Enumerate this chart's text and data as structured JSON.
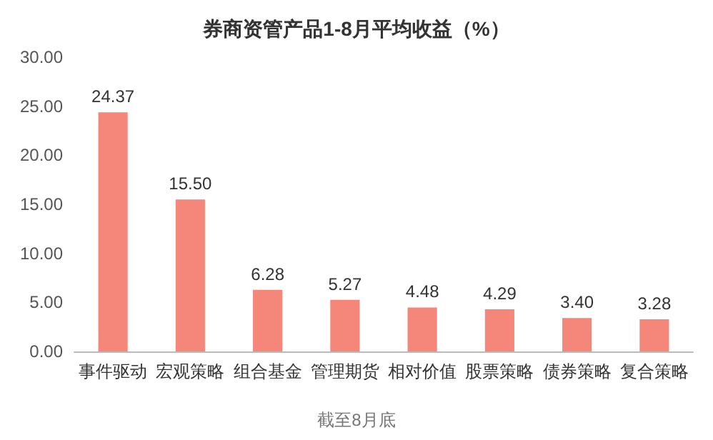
{
  "chart_data": {
    "type": "bar",
    "title": "券商资管产品1-8月平均收益（%）",
    "categories": [
      "事件驱动",
      "宏观策略",
      "组合基金",
      "管理期货",
      "相对价值",
      "股票策略",
      "债券策略",
      "复合策略"
    ],
    "values": [
      24.37,
      15.5,
      6.28,
      5.27,
      4.48,
      4.29,
      3.4,
      3.28
    ],
    "value_labels": [
      "24.37",
      "15.50",
      "6.28",
      "5.27",
      "4.48",
      "4.29",
      "3.40",
      "3.28"
    ],
    "color": "#f4877a",
    "ylim": [
      0,
      30
    ],
    "yticks": [
      {
        "value": 0,
        "label": "0.00"
      },
      {
        "value": 5,
        "label": "5.00"
      },
      {
        "value": 10,
        "label": "10.00"
      },
      {
        "value": 15,
        "label": "15.00"
      },
      {
        "value": 20,
        "label": "20.00"
      },
      {
        "value": 25,
        "label": "25.00"
      },
      {
        "value": 30,
        "label": "30.00"
      }
    ],
    "grid": false,
    "annotations": [
      "截至8月底"
    ]
  }
}
